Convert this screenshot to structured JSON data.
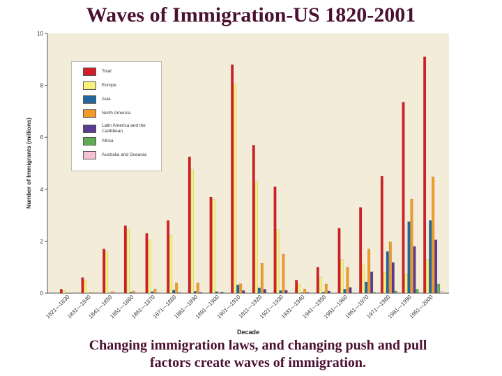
{
  "slide": {
    "title": "Waves of Immigration-US 1820-2001",
    "caption_line1": "Changing immigration laws, and changing push and pull",
    "caption_line2": "factors create waves of immigration."
  },
  "colors": {
    "plot_background": "#f2ecd8",
    "series": [
      "#d21f26",
      "#f7f27a",
      "#24669e",
      "#f29b26",
      "#5b3a91",
      "#5fac54",
      "#f6c2d6"
    ]
  },
  "chart_data": {
    "type": "bar",
    "title": "Waves of Immigration-US 1820-2001",
    "xlabel": "Decade",
    "ylabel": "Number of Immigrants (millions)",
    "ylim": [
      0,
      10
    ],
    "yticks": [
      "0",
      "2",
      "4",
      "6",
      "8",
      "10"
    ],
    "grid": false,
    "legend_position": "top-left",
    "categories": [
      "1821—1830",
      "1831—1840",
      "1841—1850",
      "1851—1860",
      "1861—1870",
      "1871—1880",
      "1881—1890",
      "1891—1900",
      "1901—1910",
      "1911—1920",
      "1921—1930",
      "1931—1940",
      "1941—1950",
      "1951—1960",
      "1961—1970",
      "1971—1980",
      "1981—1990",
      "1991—2000"
    ],
    "series": [
      {
        "name": "Total",
        "values": [
          0.15,
          0.6,
          1.7,
          2.6,
          2.3,
          2.8,
          5.25,
          3.7,
          8.8,
          5.7,
          4.1,
          0.5,
          1.0,
          2.5,
          3.3,
          4.5,
          7.35,
          9.1
        ]
      },
      {
        "name": "Europe",
        "values": [
          0.1,
          0.5,
          1.6,
          2.45,
          2.05,
          2.25,
          4.75,
          3.6,
          8.05,
          4.3,
          2.45,
          0.35,
          0.6,
          1.3,
          1.1,
          0.8,
          0.75,
          1.3
        ]
      },
      {
        "name": "Asia",
        "values": [
          0,
          0,
          0,
          0.04,
          0.06,
          0.12,
          0.07,
          0.06,
          0.32,
          0.2,
          0.1,
          0.02,
          0.04,
          0.15,
          0.43,
          1.6,
          2.75,
          2.8
        ]
      },
      {
        "name": "North America",
        "values": [
          0.01,
          0.03,
          0.06,
          0.08,
          0.16,
          0.4,
          0.4,
          0.03,
          0.36,
          1.15,
          1.5,
          0.16,
          0.35,
          1.0,
          1.7,
          1.98,
          3.62,
          4.48
        ]
      },
      {
        "name": "Latin America and the Caribbean",
        "values": [
          0,
          0.01,
          0.01,
          0.01,
          0.01,
          0.02,
          0.03,
          0.04,
          0.1,
          0.15,
          0.11,
          0.03,
          0.08,
          0.22,
          0.82,
          1.18,
          1.8,
          2.05
        ]
      },
      {
        "name": "Africa",
        "values": [
          0,
          0,
          0,
          0,
          0,
          0,
          0,
          0,
          0.01,
          0.01,
          0.01,
          0,
          0.01,
          0.01,
          0.03,
          0.08,
          0.15,
          0.35
        ]
      },
      {
        "name": "Australia and Oceania",
        "values": [
          0,
          0,
          0,
          0,
          0.01,
          0.01,
          0.01,
          0,
          0.01,
          0.01,
          0.01,
          0,
          0.01,
          0.01,
          0.02,
          0.04,
          0.04,
          0.06
        ]
      }
    ]
  }
}
